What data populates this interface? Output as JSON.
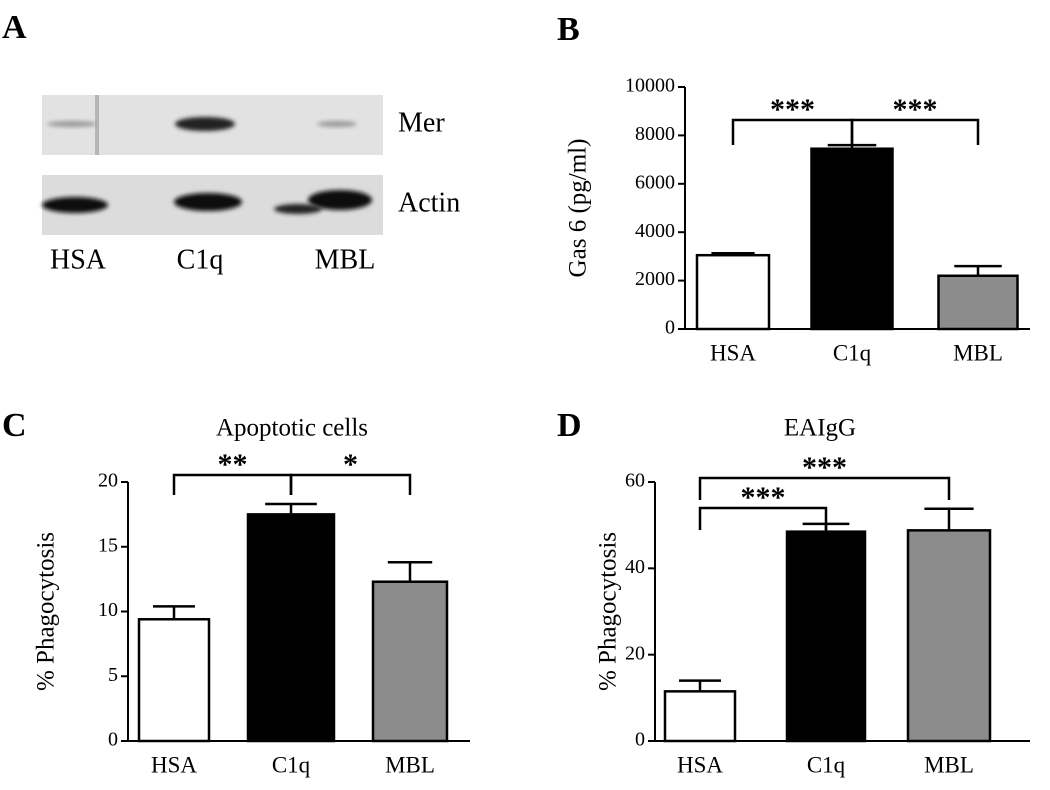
{
  "chart_data": [
    {
      "type": "blot",
      "panel": "A",
      "bands": [
        "Mer",
        "Actin"
      ],
      "lanes": [
        "HSA",
        "C1q",
        "MBL"
      ]
    },
    {
      "type": "bar",
      "panel": "B",
      "ylabel": "Gas 6 (pg/ml)",
      "categories": [
        "HSA",
        "C1q",
        "MBL"
      ],
      "values": [
        3050,
        7450,
        2200
      ],
      "errors": [
        80,
        150,
        400
      ],
      "colors": [
        "#ffffff",
        "#000000",
        "#8c8c8c"
      ],
      "ylim": [
        0,
        10000
      ],
      "yticks": [
        0,
        2000,
        4000,
        6000,
        8000,
        10000
      ],
      "significance": [
        {
          "from": 0,
          "to": 1,
          "label": "***"
        },
        {
          "from": 1,
          "to": 2,
          "label": "***"
        }
      ]
    },
    {
      "type": "bar",
      "panel": "C",
      "title": "Apoptotic cells",
      "ylabel": "% Phagocytosis",
      "categories": [
        "HSA",
        "C1q",
        "MBL"
      ],
      "values": [
        9.4,
        17.5,
        12.3
      ],
      "errors": [
        1.0,
        0.8,
        1.5
      ],
      "colors": [
        "#ffffff",
        "#000000",
        "#8c8c8c"
      ],
      "ylim": [
        0,
        20
      ],
      "yticks": [
        0,
        5,
        10,
        15,
        20
      ],
      "significance": [
        {
          "from": 0,
          "to": 1,
          "label": "**"
        },
        {
          "from": 1,
          "to": 2,
          "label": "*"
        }
      ]
    },
    {
      "type": "bar",
      "panel": "D",
      "title": "EAIgG",
      "ylabel": "% Phagocytosis",
      "categories": [
        "HSA",
        "C1q",
        "MBL"
      ],
      "values": [
        11.5,
        48.5,
        48.8
      ],
      "errors": [
        2.5,
        1.8,
        5.0
      ],
      "colors": [
        "#ffffff",
        "#000000",
        "#8c8c8c"
      ],
      "ylim": [
        0,
        60
      ],
      "yticks": [
        0,
        20,
        40,
        60
      ],
      "significance": [
        {
          "from": 0,
          "to": 1,
          "label": "***"
        },
        {
          "from": 0,
          "to": 2,
          "label": "***"
        }
      ]
    }
  ]
}
